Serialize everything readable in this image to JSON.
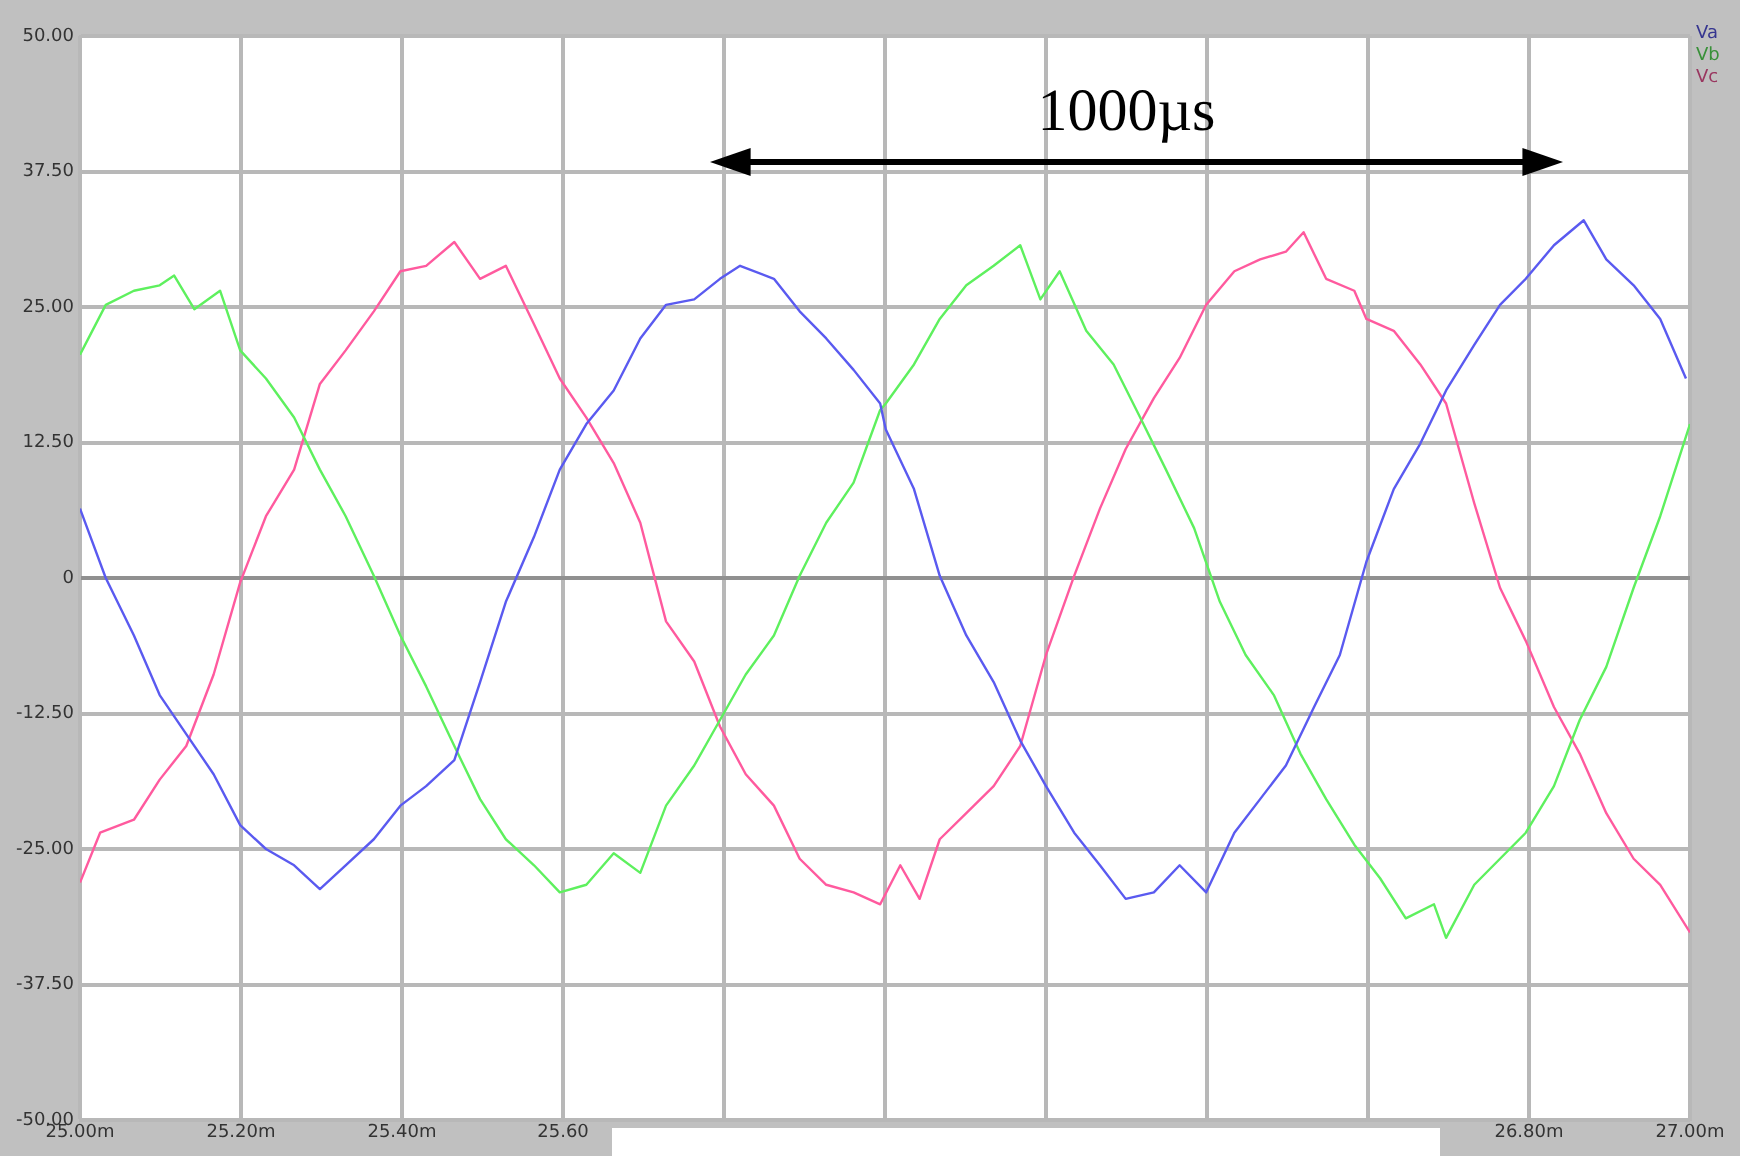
{
  "chart_data": {
    "type": "line",
    "legend": "top right",
    "grid": true,
    "marker": "none",
    "line_style": "solid",
    "xlim": [
      25.0,
      27.0
    ],
    "xticks": [
      {
        "value": 25.0,
        "label": "25.00m"
      },
      {
        "value": 25.2,
        "label": "25.20m"
      },
      {
        "value": 25.4,
        "label": "25.40m"
      },
      {
        "value": 25.6,
        "label": "25.60"
      },
      {
        "value": 25.8,
        "label": null
      },
      {
        "value": 26.0,
        "label": null
      },
      {
        "value": 26.2,
        "label": null
      },
      {
        "value": 26.4,
        "label": null
      },
      {
        "value": 26.6,
        "label": null
      },
      {
        "value": 26.8,
        "label": "26.80m"
      },
      {
        "value": 27.0,
        "label": "27.00m"
      }
    ],
    "ylim": [
      -50,
      50
    ],
    "yticks": [
      {
        "value": -50,
        "label": "-50.00"
      },
      {
        "value": -37.5,
        "label": "-37.50"
      },
      {
        "value": -25,
        "label": "-25.00"
      },
      {
        "value": -12.5,
        "label": "-12.50"
      },
      {
        "value": 0,
        "label": "0"
      },
      {
        "value": 12.5,
        "label": "12.50"
      },
      {
        "value": 25,
        "label": "25.00"
      },
      {
        "value": 37.5,
        "label": "37.50"
      },
      {
        "value": 50,
        "label": "50.00"
      }
    ],
    "annotations": [
      "1000µs"
    ],
    "series": [
      {
        "name": "Va",
        "color": "#5a5af0",
        "x": [
          25.0,
          25.032,
          25.067,
          25.099,
          25.132,
          25.166,
          25.199,
          25.231,
          25.266,
          25.298,
          25.33,
          25.365,
          25.398,
          25.43,
          25.465,
          25.497,
          25.529,
          25.564,
          25.596,
          25.629,
          25.663,
          25.696,
          25.728,
          25.763,
          25.795,
          25.82,
          25.862,
          25.894,
          25.927,
          25.961,
          25.994,
          26.001,
          26.036,
          26.068,
          26.101,
          26.135,
          26.168,
          26.2,
          26.235,
          26.267,
          26.299,
          26.334,
          26.366,
          26.399,
          26.434,
          26.466,
          26.498,
          26.533,
          26.565,
          26.598,
          26.632,
          26.665,
          26.697,
          26.732,
          26.764,
          26.796,
          26.831,
          26.868,
          26.896,
          26.93,
          26.963,
          26.995
        ],
        "values": [
          6.4,
          0,
          -5.3,
          -10.8,
          -14.4,
          -18.1,
          -22.8,
          -25,
          -26.5,
          -28.7,
          -26.5,
          -24.1,
          -21,
          -19.2,
          -16.8,
          -9.6,
          -2.2,
          3.8,
          10,
          14.2,
          17.3,
          22.1,
          25.2,
          25.7,
          27.6,
          28.8,
          27.6,
          24.6,
          22.1,
          19.2,
          16.1,
          13.7,
          8.2,
          0.2,
          -5.3,
          -9.6,
          -15,
          -19.2,
          -23.5,
          -26.5,
          -29.6,
          -29,
          -26.5,
          -29,
          -23.5,
          -20.4,
          -17.3,
          -11.9,
          -7.1,
          1.5,
          8.2,
          12.4,
          17.3,
          21.5,
          25.2,
          27.6,
          30.7,
          33,
          29.4,
          27,
          23.9,
          18.4
        ]
      },
      {
        "name": "Vb",
        "color": "#5ef05e",
        "x": [
          25.0,
          25.032,
          25.067,
          25.099,
          25.117,
          25.142,
          25.174,
          25.199,
          25.231,
          25.266,
          25.298,
          25.33,
          25.365,
          25.398,
          25.43,
          25.465,
          25.497,
          25.529,
          25.564,
          25.596,
          25.629,
          25.663,
          25.696,
          25.728,
          25.763,
          25.795,
          25.827,
          25.862,
          25.894,
          25.927,
          25.961,
          25.994,
          26.001,
          26.036,
          26.068,
          26.101,
          26.135,
          26.168,
          26.193,
          26.217,
          26.25,
          26.284,
          26.317,
          26.349,
          26.384,
          26.416,
          26.448,
          26.483,
          26.516,
          26.548,
          26.583,
          26.615,
          26.647,
          26.682,
          26.697,
          26.732,
          26.764,
          26.796,
          26.831,
          26.863,
          26.896,
          26.93,
          26.963,
          27.0
        ],
        "values": [
          20.6,
          25.2,
          26.5,
          27,
          27.9,
          24.8,
          26.5,
          21,
          18.4,
          14.8,
          10,
          5.7,
          0.2,
          -5.3,
          -10,
          -15.5,
          -20.4,
          -24.1,
          -26.5,
          -29,
          -28.3,
          -25.4,
          -27.2,
          -21,
          -17.3,
          -13.1,
          -8.9,
          -5.3,
          0.2,
          5.1,
          8.8,
          15.5,
          16.1,
          19.7,
          23.9,
          27,
          28.8,
          30.7,
          25.7,
          28.3,
          22.8,
          19.7,
          14.8,
          10,
          4.6,
          -2.2,
          -7.1,
          -10.8,
          -16.2,
          -20.4,
          -24.6,
          -27.7,
          -31.4,
          -30.1,
          -33.2,
          -28.3,
          -25.9,
          -23.5,
          -19.2,
          -13.1,
          -8.2,
          -0.9,
          5.7,
          14.2
        ]
      },
      {
        "name": "Vc",
        "color": "#ff5a9e",
        "x": [
          25.0,
          25.025,
          25.067,
          25.099,
          25.132,
          25.166,
          25.199,
          25.231,
          25.266,
          25.298,
          25.33,
          25.365,
          25.398,
          25.43,
          25.465,
          25.497,
          25.529,
          25.564,
          25.596,
          25.629,
          25.663,
          25.696,
          25.728,
          25.763,
          25.795,
          25.827,
          25.862,
          25.894,
          25.927,
          25.961,
          25.994,
          26.019,
          26.043,
          26.068,
          26.101,
          26.135,
          26.168,
          26.2,
          26.235,
          26.267,
          26.299,
          26.334,
          26.366,
          26.399,
          26.434,
          26.466,
          26.498,
          26.52,
          26.548,
          26.583,
          26.598,
          26.632,
          26.665,
          26.697,
          26.732,
          26.764,
          26.796,
          26.831,
          26.863,
          26.896,
          26.93,
          26.963,
          27.0
        ],
        "values": [
          -28.1,
          -23.5,
          -22.3,
          -18.6,
          -15.5,
          -8.9,
          -0.4,
          5.7,
          10,
          17.9,
          21,
          24.6,
          28.3,
          28.8,
          31,
          27.6,
          28.8,
          23.4,
          18.4,
          14.8,
          10.6,
          5.1,
          -4,
          -7.7,
          -13.7,
          -18.1,
          -21,
          -25.9,
          -28.3,
          -29,
          -30.1,
          -26.5,
          -29.6,
          -24.1,
          -21.7,
          -19.2,
          -15.5,
          -7.1,
          0.2,
          6.4,
          11.9,
          16.6,
          20.3,
          25.2,
          28.3,
          29.4,
          30.1,
          31.9,
          27.6,
          26.5,
          23.9,
          22.8,
          19.7,
          16.1,
          6.9,
          -0.9,
          -5.8,
          -11.9,
          -16.2,
          -21.7,
          -25.9,
          -28.3,
          -32.7
        ]
      }
    ]
  }
}
